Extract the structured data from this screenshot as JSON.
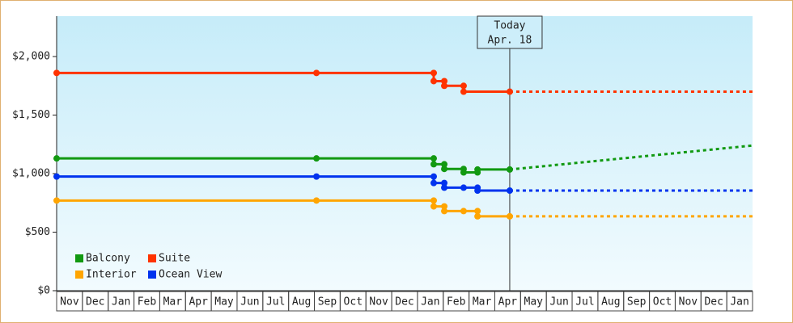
{
  "chart_data": {
    "type": "line",
    "xlim": [
      0,
      27
    ],
    "ylim": [
      0,
      2345
    ],
    "yticks": [
      {
        "value": 0,
        "label": "$0"
      },
      {
        "value": 500,
        "label": "$500"
      },
      {
        "value": 1000,
        "label": "$1,000"
      },
      {
        "value": 1500,
        "label": "$1,500"
      },
      {
        "value": 2000,
        "label": "$2,000"
      }
    ],
    "xticks": [
      {
        "value": 0,
        "label": "Nov"
      },
      {
        "value": 1,
        "label": "Dec"
      },
      {
        "value": 2,
        "label": "Jan"
      },
      {
        "value": 3,
        "label": "Feb"
      },
      {
        "value": 4,
        "label": "Mar"
      },
      {
        "value": 5,
        "label": "Apr"
      },
      {
        "value": 6,
        "label": "May"
      },
      {
        "value": 7,
        "label": "Jun"
      },
      {
        "value": 8,
        "label": "Jul"
      },
      {
        "value": 9,
        "label": "Aug"
      },
      {
        "value": 10,
        "label": "Sep"
      },
      {
        "value": 11,
        "label": "Oct"
      },
      {
        "value": 12,
        "label": "Nov"
      },
      {
        "value": 13,
        "label": "Dec"
      },
      {
        "value": 14,
        "label": "Jan"
      },
      {
        "value": 15,
        "label": "Feb"
      },
      {
        "value": 16,
        "label": "Mar"
      },
      {
        "value": 17,
        "label": "Apr"
      },
      {
        "value": 18,
        "label": "May"
      },
      {
        "value": 19,
        "label": "Jun"
      },
      {
        "value": 20,
        "label": "Jul"
      },
      {
        "value": 21,
        "label": "Aug"
      },
      {
        "value": 22,
        "label": "Sep"
      },
      {
        "value": 23,
        "label": "Oct"
      },
      {
        "value": 24,
        "label": "Nov"
      },
      {
        "value": 25,
        "label": "Dec"
      },
      {
        "value": 26,
        "label": "Jan"
      }
    ],
    "today": {
      "x": 17.58,
      "label": "Today",
      "date": "Apr. 18"
    },
    "legend": "lower left",
    "series": [
      {
        "name": "Balcony",
        "color": "#119911",
        "x": [
          0,
          10.08,
          14.63,
          14.63,
          15.04,
          15.04,
          15.79,
          15.79,
          16.33,
          16.33,
          17.58,
          27
        ],
        "values": [
          1130,
          1130,
          1130,
          1080,
          1080,
          1040,
          1040,
          1010,
          1010,
          1035,
          1035,
          1240
        ]
      },
      {
        "name": "Suite",
        "color": "#ff3300",
        "x": [
          0,
          10.08,
          14.63,
          14.63,
          15.04,
          15.04,
          15.79,
          15.79,
          17.58,
          27
        ],
        "values": [
          1860,
          1860,
          1860,
          1790,
          1790,
          1750,
          1750,
          1700,
          1700,
          1700
        ]
      },
      {
        "name": "Interior",
        "color": "#ffa500",
        "x": [
          0,
          10.08,
          14.63,
          14.63,
          15.04,
          15.04,
          15.79,
          16.33,
          16.33,
          17.58,
          27
        ],
        "values": [
          770,
          770,
          770,
          720,
          720,
          680,
          680,
          680,
          635,
          635,
          635
        ]
      },
      {
        "name": "Ocean View",
        "color": "#0033ee",
        "x": [
          0,
          10.08,
          14.63,
          14.63,
          15.04,
          15.04,
          15.79,
          16.33,
          16.33,
          17.58,
          27
        ],
        "values": [
          975,
          975,
          975,
          920,
          920,
          880,
          880,
          880,
          855,
          855,
          855
        ]
      }
    ]
  }
}
